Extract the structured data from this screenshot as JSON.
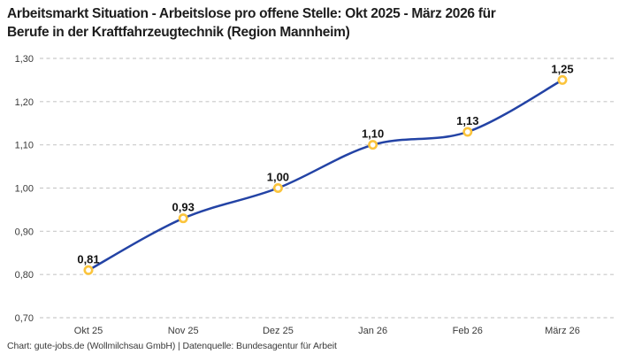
{
  "header": {
    "title_lines": [
      "Arbeitsmarkt Situation - Arbeitslose pro offene Stelle: Okt 2025 - März 2026 für",
      "Berufe in der Kraftfahrzeugtechnik (Region Mannheim)"
    ]
  },
  "footer": {
    "credit": "Chart: gute-jobs.de (Wollmilchsau GmbH) | Datenquelle: Bundesagentur für Arbeit"
  },
  "chart_data": {
    "type": "line",
    "title": "Arbeitsmarkt Situation - Arbeitslose pro offene Stelle: Okt 2025 - März 2026 für Berufe in der Kraftfahrzeugtechnik (Region Mannheim)",
    "categories": [
      "Okt 25",
      "Nov 25",
      "Dez 25",
      "Jan 26",
      "Feb 26",
      "März 26"
    ],
    "values": [
      0.81,
      0.93,
      1.0,
      1.1,
      1.13,
      1.25
    ],
    "point_labels": [
      "0,81",
      "0,93",
      "1,00",
      "1,10",
      "1,13",
      "1,25"
    ],
    "y_tick_labels": [
      "1,30",
      "1,20",
      "1,10",
      "1,00",
      "0,90",
      "0,80",
      "0,70"
    ],
    "y_tick_values": [
      1.3,
      1.2,
      1.1,
      1.0,
      0.9,
      0.8,
      0.7
    ],
    "ylim": [
      0.7,
      1.3
    ],
    "xlabel": "",
    "ylabel": "",
    "legend": "none",
    "grid": "horizontal-dashed",
    "colors": {
      "line": "#2343a5",
      "marker_ring": "#fbc43c",
      "marker_fill": "#ffffff",
      "gridline": "#c9c9c9",
      "tick_text": "#3a3a3a",
      "point_label_text": "#131313",
      "title_text": "#1d1d1d"
    }
  }
}
